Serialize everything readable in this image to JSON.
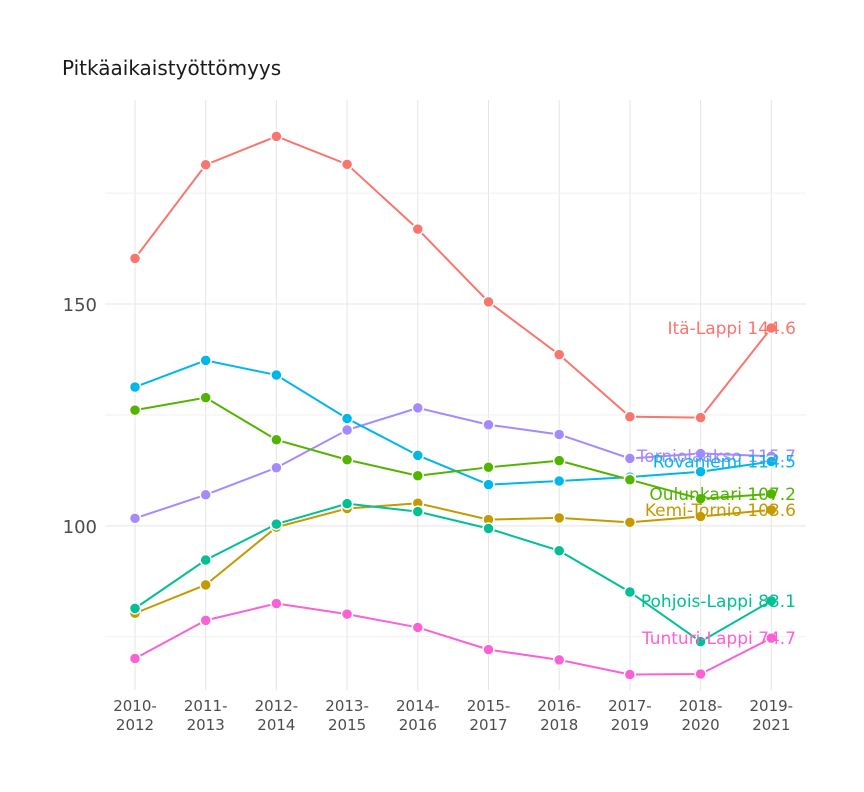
{
  "chart_data": {
    "type": "line",
    "title": "Pitkäaikaistyöttömyys",
    "xlabel": "",
    "ylabel": "",
    "categories": [
      "2010-\n2012",
      "2011-\n2013",
      "2012-\n2014",
      "2013-\n2015",
      "2014-\n2016",
      "2015-\n2017",
      "2016-\n2018",
      "2017-\n2019",
      "2018-\n2020",
      "2019-\n2021"
    ],
    "yticks": [
      100,
      150
    ],
    "ylim": [
      63,
      196
    ],
    "grid": true,
    "legend": "none; direct end labels",
    "series": [
      {
        "name": "Itä-Lappi",
        "label": "Itä-Lappi 144.6",
        "color": "#F8766D",
        "values": [
          160.3,
          181.4,
          187.8,
          181.5,
          166.9,
          150.5,
          138.6,
          124.6,
          124.4,
          144.6
        ]
      },
      {
        "name": "Torniolaakso",
        "label": "Torniolaakso 115.7",
        "color": "#A58AFF",
        "values": [
          101.7,
          107.0,
          113.1,
          121.6,
          126.6,
          122.8,
          120.6,
          115.2,
          116.3,
          115.7
        ]
      },
      {
        "name": "Rovaniemi",
        "label": "Rovaniemi 114.5",
        "color": "#00B6EB",
        "values": [
          131.3,
          137.3,
          134.0,
          124.2,
          115.9,
          109.3,
          110.1,
          111.0,
          112.2,
          114.5
        ]
      },
      {
        "name": "Oulunkaari",
        "label": "Oulunkaari 107.2",
        "color": "#53B400",
        "values": [
          126.1,
          128.9,
          119.4,
          114.9,
          111.3,
          113.2,
          114.7,
          110.4,
          106.1,
          107.2
        ]
      },
      {
        "name": "Kemi-Tornio",
        "label": "Kemi-Tornio 103.6",
        "color": "#C49A00",
        "values": [
          80.3,
          86.7,
          99.7,
          103.9,
          105.1,
          101.4,
          101.8,
          100.8,
          102.1,
          103.6
        ]
      },
      {
        "name": "Pohjois-Lappi",
        "label": "Pohjois-Lappi 83.1",
        "color": "#00C094",
        "values": [
          81.4,
          92.3,
          100.4,
          105.0,
          103.2,
          99.4,
          94.4,
          85.1,
          73.9,
          83.1
        ]
      },
      {
        "name": "Tunturi-Lappi",
        "label": "Tunturi-Lappi 74.7",
        "color": "#FB61D7",
        "values": [
          70.1,
          78.7,
          82.5,
          80.1,
          77.1,
          72.1,
          69.8,
          66.5,
          66.6,
          74.7
        ]
      }
    ]
  }
}
